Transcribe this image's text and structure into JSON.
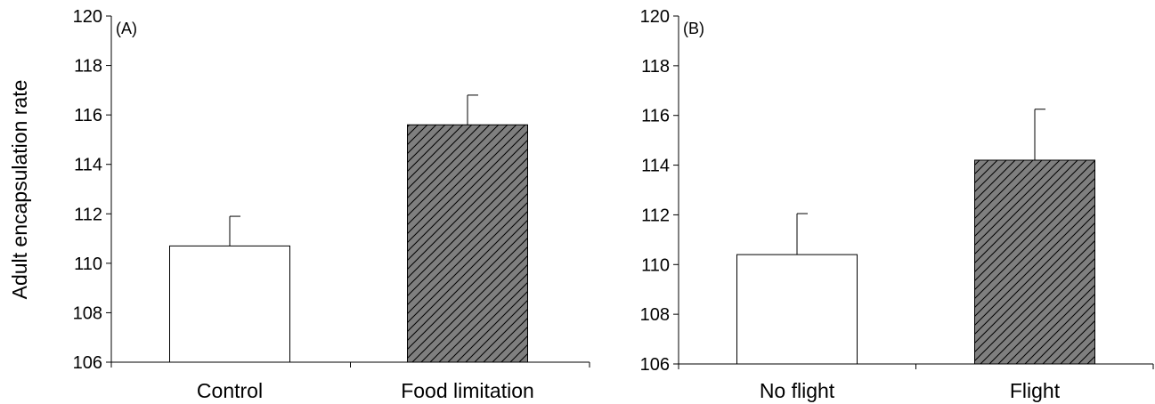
{
  "chart_data": [
    {
      "type": "bar",
      "panel_label": "(A)",
      "categories": [
        "Control",
        "Food limitation"
      ],
      "values": [
        110.7,
        115.6
      ],
      "error_upper": [
        1.2,
        1.2
      ],
      "bar_fills": [
        "white",
        "hatched-gray"
      ],
      "ylabel": "Adult encapsulation rate",
      "ylim": [
        106,
        120
      ],
      "yticks": [
        106,
        108,
        110,
        112,
        114,
        116,
        118,
        120
      ],
      "grid": false
    },
    {
      "type": "bar",
      "panel_label": "(B)",
      "categories": [
        "No flight",
        "Flight"
      ],
      "values": [
        110.4,
        114.2
      ],
      "error_upper": [
        1.65,
        2.05
      ],
      "bar_fills": [
        "white",
        "hatched-gray"
      ],
      "ylabel": "",
      "ylim": [
        106,
        120
      ],
      "yticks": [
        106,
        108,
        110,
        112,
        114,
        116,
        118,
        120
      ],
      "grid": false
    }
  ],
  "colors": {
    "hatched_bar": "#7f7f7f",
    "hatch_line": "#000000",
    "axis": "#000000"
  }
}
